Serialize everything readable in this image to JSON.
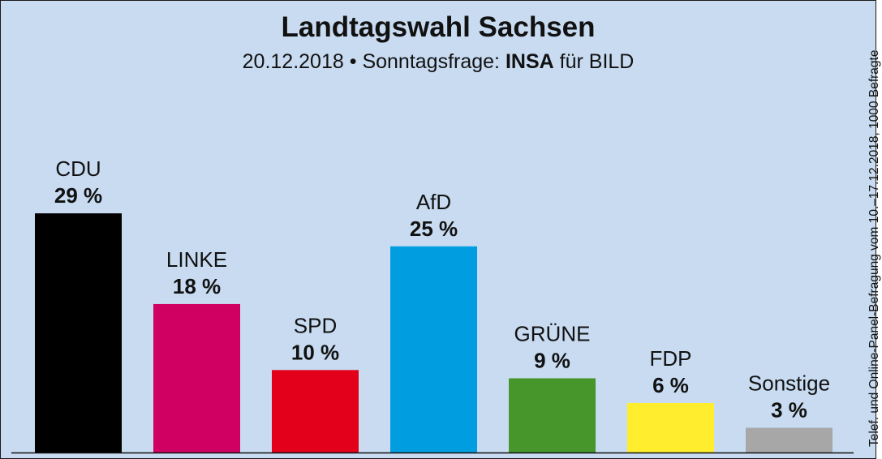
{
  "title": "Landtagswahl Sachsen",
  "subtitle": {
    "date": "20.12.2018",
    "bullet": "•",
    "prefix": "Sonntagsfrage:",
    "institute": "INSA",
    "suffix": "für BILD"
  },
  "source_note": "Telef. und Online-Panel-Befragung vom 10.–17.12.2018, 1000 Befragte",
  "chart_data": {
    "type": "bar",
    "title": "Landtagswahl Sachsen",
    "categories": [
      "CDU",
      "LINKE",
      "SPD",
      "AfD",
      "GRÜNE",
      "FDP",
      "Sonstige"
    ],
    "values": [
      29,
      18,
      10,
      25,
      9,
      6,
      3
    ],
    "value_labels": [
      "29 %",
      "18 %",
      "10 %",
      "25 %",
      "9 %",
      "6 %",
      "3 %"
    ],
    "unit": "%",
    "colors": [
      "#000000",
      "#d00062",
      "#e2001a",
      "#009ee0",
      "#46962b",
      "#ffed2e",
      "#a7a7a7"
    ],
    "background": "#c8dbf1",
    "ylim": [
      0,
      29
    ],
    "grid": false,
    "legend": "none"
  }
}
